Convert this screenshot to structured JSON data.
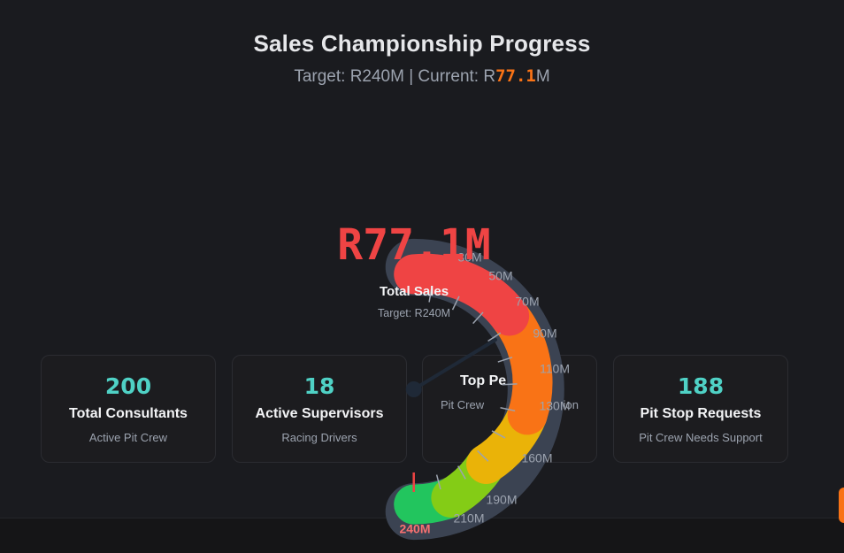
{
  "header": {
    "title": "Sales Championship Progress",
    "subtitle_prefix": "Target: R240M | Current: R",
    "current_value": "77.1",
    "subtitle_suffix": "M"
  },
  "gauge": {
    "value_label": "R77.1M",
    "caption": "Total Sales",
    "target_label": "Target: R240M",
    "value": 77.1,
    "max": 240,
    "ticks": [
      "30M",
      "50M",
      "70M",
      "90M",
      "110M",
      "130M",
      "160M",
      "190M",
      "210M",
      "240M"
    ],
    "colors": {
      "red": "#ef4444",
      "orange": "#f97316",
      "yellow": "#eab308",
      "lime": "#84cc16",
      "green": "#22c55e",
      "track": "#3b4352"
    }
  },
  "cards": [
    {
      "value": "200",
      "label": "Total Consultants",
      "sub": "Active Pit Crew"
    },
    {
      "value": "18",
      "label": "Active Supervisors",
      "sub": "Racing Drivers"
    },
    {
      "value": "",
      "label": "Top Pe",
      "sub": "Pit Crew",
      "sub_tail": "sition"
    },
    {
      "value": "188",
      "label": "Pit Stop Requests",
      "sub": "Pit Crew Needs Support"
    }
  ]
}
